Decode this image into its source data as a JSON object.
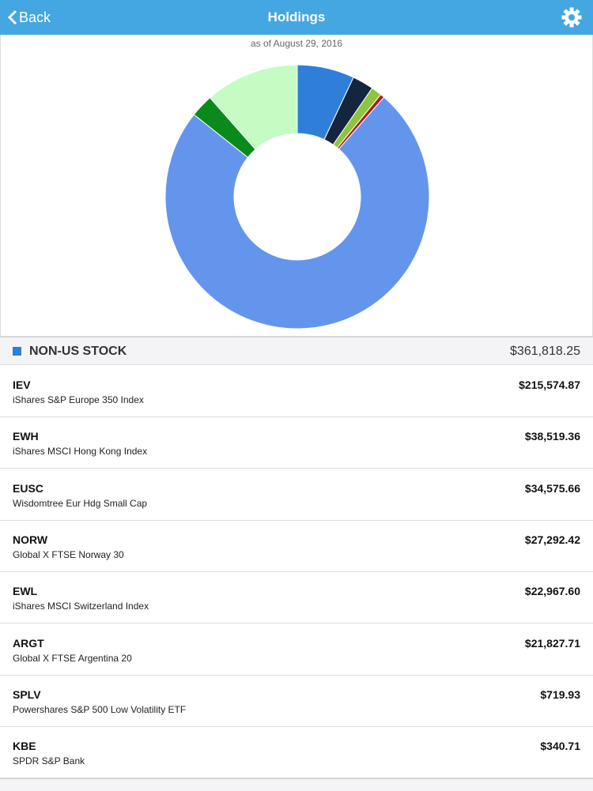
{
  "header": {
    "back": "Back",
    "title": "Holdings"
  },
  "subtitle": "as of August 29, 2016",
  "chart_data": {
    "type": "pie",
    "values": [
      7.0,
      2.6,
      1.3,
      0.5,
      74.3,
      2.8,
      11.5
    ],
    "colors": [
      "#2f7fd8",
      "#14263f",
      "#8cc63f",
      "#b01c1c",
      "#6495ed",
      "#0a8a1a",
      "#c4fcc4"
    ]
  },
  "section": {
    "title": "NON-US STOCK",
    "total": "$361,818.25"
  },
  "holdings": [
    {
      "symbol": "IEV",
      "name": "iShares S&P Europe 350 Index",
      "value": "$215,574.87"
    },
    {
      "symbol": "EWH",
      "name": "iShares MSCI Hong Kong Index",
      "value": "$38,519.36"
    },
    {
      "symbol": "EUSC",
      "name": "Wisdomtree Eur Hdg Small Cap",
      "value": "$34,575.66"
    },
    {
      "symbol": "NORW",
      "name": "Global X FTSE Norway 30",
      "value": "$27,292.42"
    },
    {
      "symbol": "EWL",
      "name": "iShares MSCI Switzerland Index",
      "value": "$22,967.60"
    },
    {
      "symbol": "ARGT",
      "name": "Global X FTSE Argentina 20",
      "value": "$21,827.71"
    },
    {
      "symbol": "SPLV",
      "name": "Powershares S&P 500 Low Volatility ETF",
      "value": "$719.93"
    },
    {
      "symbol": "KBE",
      "name": "SPDR S&P Bank",
      "value": "$340.71"
    }
  ]
}
